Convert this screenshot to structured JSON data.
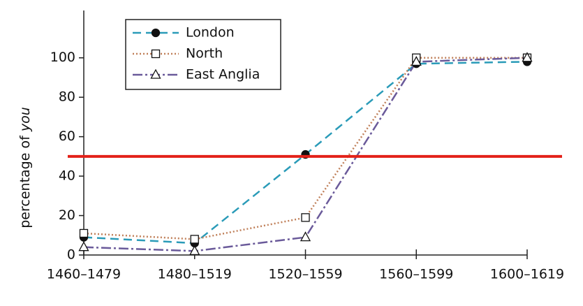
{
  "chart_data": {
    "type": "line",
    "y_label": "percentage of",
    "y_label_emphasis": "you",
    "categories": [
      "1460–1479",
      "1480–1519",
      "1520–1559",
      "1560–1599",
      "1600–1619"
    ],
    "series": [
      {
        "name": "London",
        "color": "#2a9bb8",
        "dash": "12 7",
        "marker": "circle",
        "values": [
          9,
          6,
          51,
          97,
          98
        ]
      },
      {
        "name": "North",
        "color": "#c0805a",
        "dash": "2 3",
        "marker": "square",
        "values": [
          11,
          8,
          19,
          100,
          100
        ]
      },
      {
        "name": "East Anglia",
        "color": "#6a5a9a",
        "dash": "14 4 3 4",
        "marker": "triangle",
        "values": [
          4,
          2,
          9,
          98,
          100
        ]
      }
    ],
    "ylim": [
      0,
      124
    ],
    "yticks": [
      0,
      20,
      40,
      60,
      80,
      100
    ],
    "reference_line": {
      "value": 50,
      "color": "#e32119"
    },
    "legend": "upper left"
  }
}
